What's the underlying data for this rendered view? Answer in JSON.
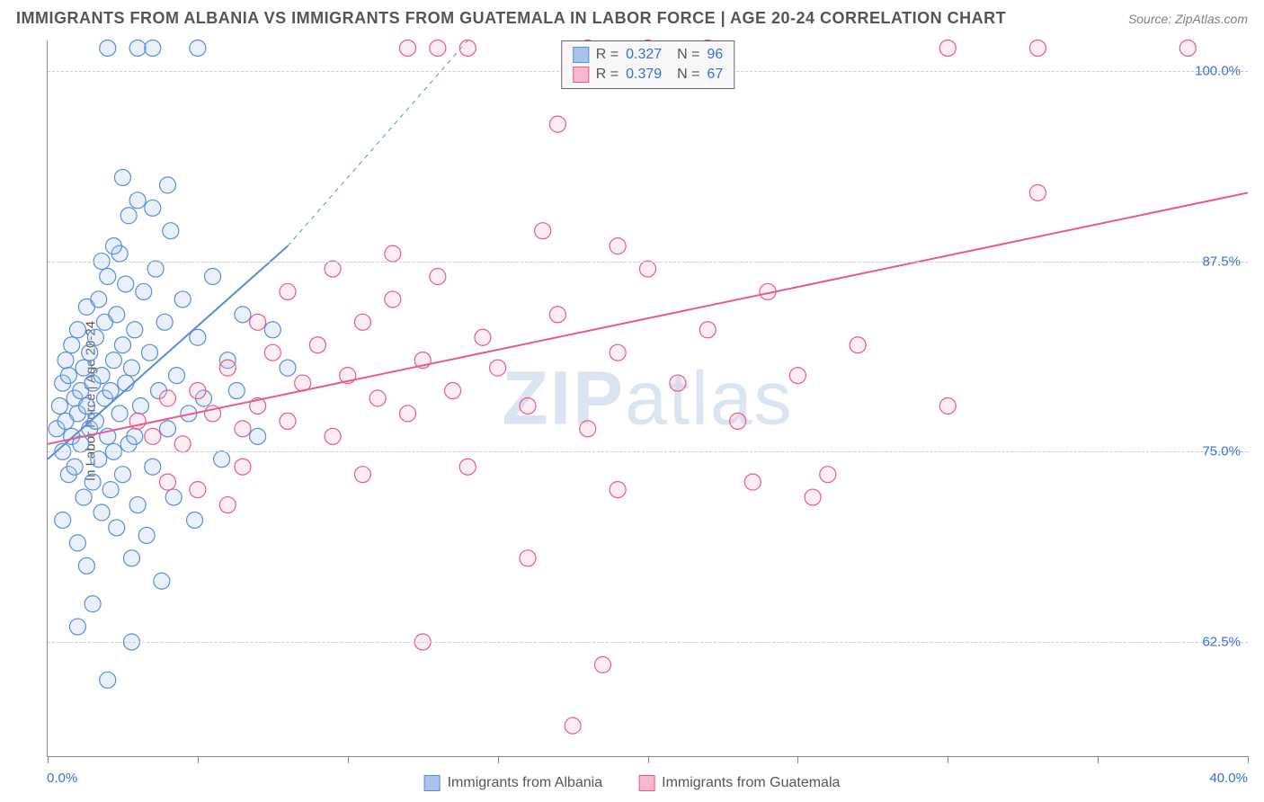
{
  "title": "IMMIGRANTS FROM ALBANIA VS IMMIGRANTS FROM GUATEMALA IN LABOR FORCE | AGE 20-24 CORRELATION CHART",
  "source": "Source: ZipAtlas.com",
  "ylabel": "In Labor Force | Age 20-24",
  "watermark_bold": "ZIP",
  "watermark_light": "atlas",
  "chart": {
    "type": "scatter",
    "xlim": [
      0,
      40
    ],
    "ylim": [
      55,
      102
    ],
    "xtick_min_label": "0.0%",
    "xtick_max_label": "40.0%",
    "xtick_positions": [
      0,
      5,
      10,
      15,
      20,
      25,
      30,
      35,
      40
    ],
    "yticks": [
      {
        "v": 62.5,
        "label": "62.5%"
      },
      {
        "v": 75.0,
        "label": "75.0%"
      },
      {
        "v": 87.5,
        "label": "87.5%"
      },
      {
        "v": 100.0,
        "label": "100.0%"
      }
    ],
    "background_color": "#ffffff",
    "grid_color": "#cccccc",
    "marker_radius": 9,
    "marker_fill_opacity": 0.25,
    "marker_stroke_width": 1.2,
    "line_width": 2
  },
  "series": [
    {
      "name": "Immigrants from Albania",
      "color": "#5b8dd6",
      "fill": "#a9c4e8",
      "R": "0.327",
      "N": "96",
      "trend": {
        "x1": 0,
        "y1": 74.5,
        "x2": 8,
        "y2": 88.5,
        "dash_x2": 14,
        "dash_y2": 102
      },
      "points": [
        [
          0.3,
          76.5
        ],
        [
          0.4,
          78.0
        ],
        [
          0.5,
          75.0
        ],
        [
          0.5,
          79.5
        ],
        [
          0.6,
          77.0
        ],
        [
          0.6,
          81.0
        ],
        [
          0.7,
          73.5
        ],
        [
          0.7,
          80.0
        ],
        [
          0.8,
          76.0
        ],
        [
          0.8,
          82.0
        ],
        [
          0.9,
          78.5
        ],
        [
          0.9,
          74.0
        ],
        [
          1.0,
          77.5
        ],
        [
          1.0,
          83.0
        ],
        [
          1.1,
          79.0
        ],
        [
          1.1,
          75.5
        ],
        [
          1.2,
          80.5
        ],
        [
          1.2,
          72.0
        ],
        [
          1.3,
          78.0
        ],
        [
          1.3,
          84.5
        ],
        [
          1.4,
          76.5
        ],
        [
          1.4,
          81.5
        ],
        [
          1.5,
          79.5
        ],
        [
          1.5,
          73.0
        ],
        [
          1.6,
          82.5
        ],
        [
          1.6,
          77.0
        ],
        [
          1.7,
          85.0
        ],
        [
          1.7,
          74.5
        ],
        [
          1.8,
          80.0
        ],
        [
          1.8,
          71.0
        ],
        [
          1.9,
          78.5
        ],
        [
          1.9,
          83.5
        ],
        [
          2.0,
          76.0
        ],
        [
          2.0,
          86.5
        ],
        [
          2.1,
          79.0
        ],
        [
          2.1,
          72.5
        ],
        [
          2.2,
          81.0
        ],
        [
          2.2,
          75.0
        ],
        [
          2.3,
          84.0
        ],
        [
          2.3,
          70.0
        ],
        [
          2.4,
          77.5
        ],
        [
          2.4,
          88.0
        ],
        [
          2.5,
          82.0
        ],
        [
          2.5,
          73.5
        ],
        [
          2.6,
          79.5
        ],
        [
          2.6,
          86.0
        ],
        [
          2.7,
          75.5
        ],
        [
          2.7,
          90.5
        ],
        [
          2.8,
          80.5
        ],
        [
          2.8,
          68.0
        ],
        [
          2.9,
          83.0
        ],
        [
          2.9,
          76.0
        ],
        [
          3.0,
          91.5
        ],
        [
          3.0,
          71.5
        ],
        [
          3.1,
          78.0
        ],
        [
          3.2,
          85.5
        ],
        [
          3.3,
          69.5
        ],
        [
          3.4,
          81.5
        ],
        [
          3.5,
          74.0
        ],
        [
          3.6,
          87.0
        ],
        [
          3.7,
          79.0
        ],
        [
          3.8,
          66.5
        ],
        [
          3.9,
          83.5
        ],
        [
          4.0,
          76.5
        ],
        [
          4.1,
          89.5
        ],
        [
          4.2,
          72.0
        ],
        [
          4.3,
          80.0
        ],
        [
          4.5,
          85.0
        ],
        [
          4.7,
          77.5
        ],
        [
          4.9,
          70.5
        ],
        [
          5.0,
          82.5
        ],
        [
          5.2,
          78.5
        ],
        [
          5.5,
          86.5
        ],
        [
          5.8,
          74.5
        ],
        [
          6.0,
          81.0
        ],
        [
          6.3,
          79.0
        ],
        [
          6.5,
          84.0
        ],
        [
          7.0,
          76.0
        ],
        [
          7.5,
          83.0
        ],
        [
          8.0,
          80.5
        ],
        [
          1.0,
          63.5
        ],
        [
          1.5,
          65.0
        ],
        [
          2.0,
          60.0
        ],
        [
          2.5,
          93.0
        ],
        [
          2.0,
          101.5
        ],
        [
          3.0,
          101.5
        ],
        [
          3.5,
          101.5
        ],
        [
          5.0,
          101.5
        ],
        [
          1.0,
          69.0
        ],
        [
          1.3,
          67.5
        ],
        [
          0.5,
          70.5
        ],
        [
          2.8,
          62.5
        ],
        [
          3.5,
          91.0
        ],
        [
          4.0,
          92.5
        ],
        [
          2.2,
          88.5
        ],
        [
          1.8,
          87.5
        ]
      ]
    },
    {
      "name": "Immigrants from Guatemala",
      "color": "#e85a8a",
      "fill": "#f5b8ce",
      "R": "0.379",
      "N": "67",
      "trend": {
        "x1": 0,
        "y1": 75.5,
        "x2": 40,
        "y2": 92.0
      },
      "points": [
        [
          3.0,
          77.0
        ],
        [
          3.5,
          76.0
        ],
        [
          4.0,
          78.5
        ],
        [
          4.5,
          75.5
        ],
        [
          5.0,
          79.0
        ],
        [
          5.5,
          77.5
        ],
        [
          6.0,
          80.5
        ],
        [
          6.5,
          76.5
        ],
        [
          7.0,
          78.0
        ],
        [
          7.5,
          81.5
        ],
        [
          8.0,
          77.0
        ],
        [
          8.5,
          79.5
        ],
        [
          9.0,
          82.0
        ],
        [
          9.5,
          76.0
        ],
        [
          10.0,
          80.0
        ],
        [
          10.5,
          83.5
        ],
        [
          11.0,
          78.5
        ],
        [
          11.5,
          85.0
        ],
        [
          12.0,
          77.5
        ],
        [
          12.5,
          81.0
        ],
        [
          13.0,
          86.5
        ],
        [
          13.5,
          79.0
        ],
        [
          14.0,
          74.0
        ],
        [
          14.5,
          82.5
        ],
        [
          15.0,
          80.5
        ],
        [
          16.0,
          78.0
        ],
        [
          17.0,
          84.0
        ],
        [
          18.0,
          76.5
        ],
        [
          19.0,
          81.5
        ],
        [
          20.0,
          87.0
        ],
        [
          21.0,
          79.5
        ],
        [
          22.0,
          83.0
        ],
        [
          23.0,
          77.0
        ],
        [
          24.0,
          85.5
        ],
        [
          25.0,
          80.0
        ],
        [
          26.0,
          73.5
        ],
        [
          27.0,
          82.0
        ],
        [
          12.0,
          101.5
        ],
        [
          13.0,
          101.5
        ],
        [
          14.0,
          101.5
        ],
        [
          18.0,
          101.5
        ],
        [
          20.0,
          101.5
        ],
        [
          22.0,
          101.5
        ],
        [
          30.0,
          101.5
        ],
        [
          33.0,
          101.5
        ],
        [
          38.0,
          101.5
        ],
        [
          33.0,
          92.0
        ],
        [
          17.0,
          96.5
        ],
        [
          16.5,
          89.5
        ],
        [
          19.0,
          88.5
        ],
        [
          12.5,
          62.5
        ],
        [
          18.5,
          61.0
        ],
        [
          19.0,
          72.5
        ],
        [
          23.5,
          73.0
        ],
        [
          25.5,
          72.0
        ],
        [
          16.0,
          68.0
        ],
        [
          17.5,
          57.0
        ],
        [
          30.0,
          78.0
        ],
        [
          4.0,
          73.0
        ],
        [
          5.0,
          72.5
        ],
        [
          6.5,
          74.0
        ],
        [
          8.0,
          85.5
        ],
        [
          9.5,
          87.0
        ],
        [
          10.5,
          73.5
        ],
        [
          11.5,
          88.0
        ],
        [
          7.0,
          83.5
        ],
        [
          6.0,
          71.5
        ]
      ]
    }
  ],
  "legend_bottom": [
    {
      "label": "Immigrants from Albania"
    },
    {
      "label": "Immigrants from Guatemala"
    }
  ]
}
